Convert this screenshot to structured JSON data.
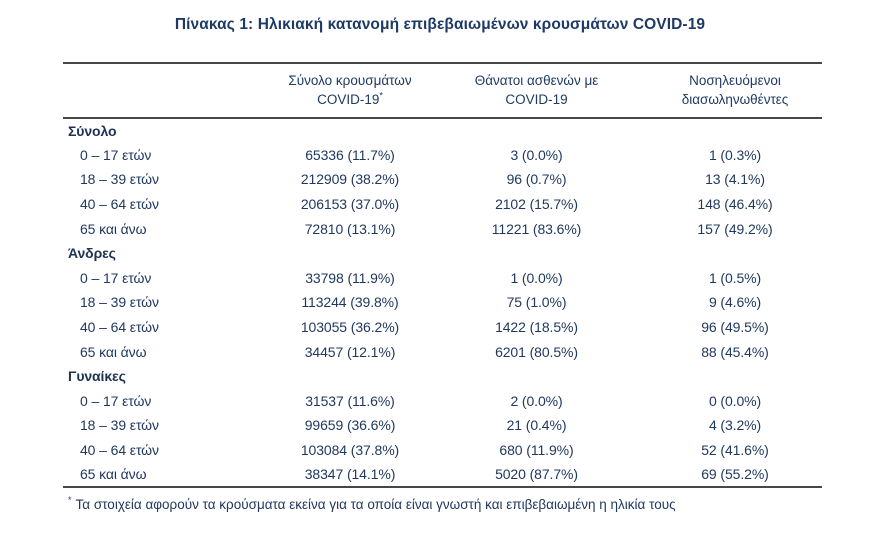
{
  "title": "Πίνακας 1: Ηλικιακή κατανομή επιβεβαιωμένων κρουσμάτων COVID-19",
  "table": {
    "columns": [
      {
        "line1": "Σύνολο κρουσμάτων",
        "line2": "COVID-19",
        "sup": "*"
      },
      {
        "line1": "Θάνατοι ασθενών με",
        "line2": "COVID-19"
      },
      {
        "line1": "Νοσηλευόμενοι",
        "line2": "διασωληνωθέντες"
      }
    ],
    "sections": [
      {
        "label": "Σύνολο",
        "rows": [
          {
            "age": "0 – 17 ετών",
            "cases": "65336 (11.7%)",
            "deaths": "3 (0.0%)",
            "intubated": "1 (0.3%)"
          },
          {
            "age": "18 – 39 ετών",
            "cases": "212909 (38.2%)",
            "deaths": "96 (0.7%)",
            "intubated": "13 (4.1%)"
          },
          {
            "age": "40 – 64 ετών",
            "cases": "206153 (37.0%)",
            "deaths": "2102 (15.7%)",
            "intubated": "148 (46.4%)"
          },
          {
            "age": "65 και άνω",
            "cases": "72810 (13.1%)",
            "deaths": "11221 (83.6%)",
            "intubated": "157 (49.2%)"
          }
        ]
      },
      {
        "label": "Άνδρες",
        "rows": [
          {
            "age": "0 – 17 ετών",
            "cases": "33798 (11.9%)",
            "deaths": "1 (0.0%)",
            "intubated": "1 (0.5%)"
          },
          {
            "age": "18 – 39 ετών",
            "cases": "113244 (39.8%)",
            "deaths": "75 (1.0%)",
            "intubated": "9 (4.6%)"
          },
          {
            "age": "40 – 64 ετών",
            "cases": "103055 (36.2%)",
            "deaths": "1422 (18.5%)",
            "intubated": "96 (49.5%)"
          },
          {
            "age": "65 και άνω",
            "cases": "34457 (12.1%)",
            "deaths": "6201 (80.5%)",
            "intubated": "88 (45.4%)"
          }
        ]
      },
      {
        "label": "Γυναίκες",
        "rows": [
          {
            "age": "0 – 17 ετών",
            "cases": "31537 (11.6%)",
            "deaths": "2 (0.0%)",
            "intubated": "0 (0.0%)"
          },
          {
            "age": "18 – 39 ετών",
            "cases": "99659 (36.6%)",
            "deaths": "21 (0.4%)",
            "intubated": "4 (3.2%)"
          },
          {
            "age": "40 – 64 ετών",
            "cases": "103084 (37.8%)",
            "deaths": "680 (11.9%)",
            "intubated": "52 (41.6%)"
          },
          {
            "age": "65 και άνω",
            "cases": "38347 (14.1%)",
            "deaths": "5020 (87.7%)",
            "intubated": "69 (55.2%)"
          }
        ]
      }
    ]
  },
  "footnote": {
    "marker": "*",
    "text": "Τα στοιχεία αφορούν τα κρούσματα εκείνα για τα οποία είναι γνωστή και επιβεβαιωμένη η ηλικία τους"
  }
}
